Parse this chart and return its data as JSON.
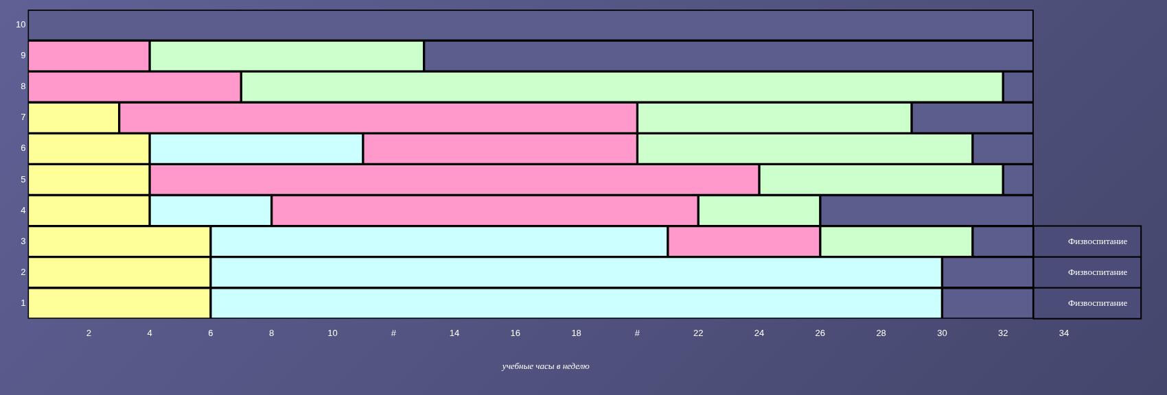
{
  "chart_data": {
    "type": "bar",
    "orientation": "horizontal",
    "stacked": true,
    "xlabel": "учебные часы в неделю",
    "categories": [
      "10",
      "9",
      "8",
      "7",
      "6",
      "5",
      "4",
      "3",
      "2",
      "1"
    ],
    "series": [
      {
        "color": "#ffff99",
        "values": [
          0,
          0,
          0,
          3,
          4,
          4,
          4,
          6,
          6,
          6
        ]
      },
      {
        "color": "#ccffff",
        "values": [
          0,
          0,
          0,
          0,
          7,
          0,
          4,
          15,
          24,
          24
        ]
      },
      {
        "color": "#ff99cc",
        "values": [
          0,
          4,
          7,
          17,
          9,
          20,
          14,
          5,
          0,
          0
        ]
      },
      {
        "color": "#ccffcc",
        "values": [
          0,
          9,
          25,
          9,
          11,
          8,
          4,
          5,
          0,
          0
        ]
      },
      {
        "color": "#5b5d8c",
        "values": [
          33,
          20,
          1,
          4,
          2,
          1,
          7,
          2,
          3,
          3
        ]
      },
      {
        "name": "Физвоспитание",
        "color": "#4b4c78",
        "values": [
          0,
          0,
          0,
          0,
          0,
          0,
          0,
          1,
          1,
          1
        ]
      }
    ],
    "xlim": [
      0,
      34
    ],
    "xticks": [
      2,
      4,
      6,
      8,
      10,
      {
        "value": 12,
        "label": "#"
      },
      14,
      16,
      18,
      {
        "value": 20,
        "label": "#"
      },
      22,
      24,
      26,
      28,
      30,
      32,
      34
    ],
    "grid": false,
    "legend": false
  }
}
